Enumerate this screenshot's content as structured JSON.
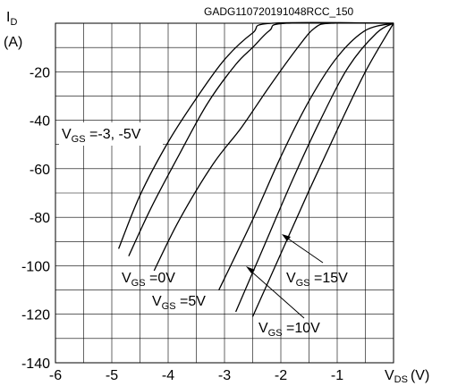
{
  "chart_data": {
    "type": "line",
    "code": "GADG110720191048RCC_150",
    "y_label_main": "I",
    "y_label_sub": "D",
    "y_unit": "(A)",
    "x_label_main": "V",
    "x_label_sub": "DS",
    "x_unit": "(V)",
    "xlim": [
      -6,
      0
    ],
    "ylim": [
      -140,
      0
    ],
    "grid": true,
    "x_ticks": [
      -6,
      -5,
      -4,
      -3,
      -2,
      -1
    ],
    "y_ticks": [
      -20,
      -40,
      -60,
      -80,
      -100,
      -120,
      -140
    ],
    "series": [
      {
        "name": "V_GS = -3, -5V",
        "points": [
          [
            -4.88,
            -93
          ],
          [
            -4.5,
            -71
          ],
          [
            -4.0,
            -49
          ],
          [
            -3.5,
            -31
          ],
          [
            -3.0,
            -15
          ],
          [
            -2.5,
            -4
          ],
          [
            -2.15,
            0
          ],
          [
            0,
            0
          ]
        ]
      },
      {
        "name": "V_GS = -3, -5V",
        "points": [
          [
            -4.7,
            -96
          ],
          [
            -4.3,
            -76
          ],
          [
            -3.8,
            -54
          ],
          [
            -3.3,
            -33
          ],
          [
            -2.8,
            -17
          ],
          [
            -2.5,
            -10
          ],
          [
            -2.2,
            -3
          ],
          [
            -1.9,
            0
          ],
          [
            0,
            0
          ]
        ]
      },
      {
        "name": "V_GS = 0V",
        "points": [
          [
            -4.25,
            -102
          ],
          [
            -3.8,
            -81
          ],
          [
            -3.2,
            -58
          ],
          [
            -2.7,
            -43
          ],
          [
            -2.2,
            -26
          ],
          [
            -1.7,
            -10
          ],
          [
            -1.4,
            -2
          ],
          [
            -1.1,
            0
          ],
          [
            0,
            0
          ]
        ]
      },
      {
        "name": "V_GS = 5V",
        "points": [
          [
            -3.1,
            -110
          ],
          [
            -2.5,
            -81
          ],
          [
            -2.0,
            -55
          ],
          [
            -1.5,
            -32
          ],
          [
            -1.0,
            -14
          ],
          [
            -0.5,
            -3
          ],
          [
            0,
            0
          ]
        ]
      },
      {
        "name": "V_GS = 10V",
        "points": [
          [
            -2.8,
            -119
          ],
          [
            -2.3,
            -92
          ],
          [
            -1.8,
            -65
          ],
          [
            -1.3,
            -40
          ],
          [
            -0.8,
            -18
          ],
          [
            -0.3,
            -4
          ],
          [
            0,
            0
          ]
        ]
      },
      {
        "name": "V_GS = 15V",
        "points": [
          [
            -2.5,
            -121
          ],
          [
            -2.0,
            -95
          ],
          [
            -1.5,
            -69
          ],
          [
            -1.0,
            -44
          ],
          [
            -0.5,
            -20
          ],
          [
            0,
            0
          ]
        ]
      }
    ],
    "annotations": [
      {
        "main": "V",
        "sub": "GS",
        "rest": " =-3, -5V"
      },
      {
        "main": "V",
        "sub": "GS",
        "rest": " =0V"
      },
      {
        "main": "V",
        "sub": "GS",
        "rest": " =5V"
      },
      {
        "main": "V",
        "sub": "GS",
        "rest": " =10V"
      },
      {
        "main": "V",
        "sub": "GS",
        "rest": " =15V"
      }
    ]
  }
}
